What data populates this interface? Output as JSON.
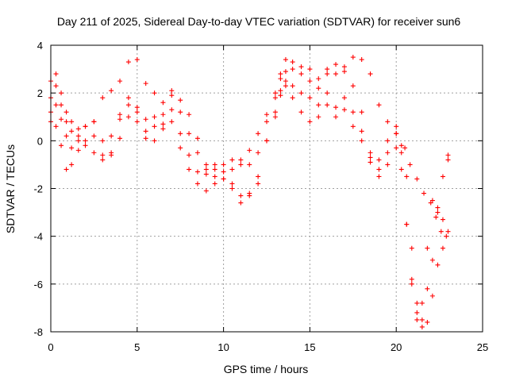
{
  "chart_data": {
    "type": "scatter",
    "title": "Day 211 of 2025, Sidereal Day-to-day VTEC variation (SDTVAR) for receiver sun6",
    "xlabel": "GPS time / hours",
    "ylabel": "SDTVAR / TECUs",
    "xlim": [
      0,
      25
    ],
    "ylim": [
      -8,
      4
    ],
    "xticks": [
      0,
      5,
      10,
      15,
      20,
      25
    ],
    "yticks": [
      -8,
      -6,
      -4,
      -2,
      0,
      2,
      4
    ],
    "xtick_labels": [
      "0",
      "5",
      "10",
      "15",
      "20",
      "25"
    ],
    "ytick_labels": [
      "-8",
      "-6",
      "-4",
      "-2",
      "0",
      "2",
      "4"
    ],
    "grid": true,
    "legend": "none",
    "marker": "plus",
    "color": "#ff0000",
    "series": [
      {
        "x": [
          0.0,
          0.3,
          0.6,
          0.9,
          1.2,
          1.6,
          2.0,
          2.5,
          3.0,
          3.5,
          4.0,
          4.5,
          5.0,
          5.5,
          6.0,
          6.5,
          7.0,
          7.5,
          8.0,
          8.5,
          9.0,
          9.5,
          10.0,
          10.5,
          11.0,
          11.5,
          12.0,
          12.5,
          13.0,
          13.3,
          13.6,
          14.0,
          14.5,
          15.0,
          15.5,
          16.0,
          16.5,
          17.0,
          17.5,
          18.0,
          18.5,
          19.0,
          19.5,
          20.0,
          20.5,
          20.8,
          21.2,
          21.6,
          22.0,
          22.3,
          22.6,
          22.9
        ],
        "y": [
          2.5,
          2.8,
          2.0,
          1.2,
          0.8,
          0.5,
          0.6,
          0.8,
          1.8,
          2.1,
          2.5,
          3.3,
          3.4,
          2.4,
          2.0,
          1.6,
          1.9,
          1.2,
          0.3,
          -0.5,
          -1.0,
          -1.2,
          -1.0,
          -0.8,
          -1.0,
          -0.4,
          0.3,
          1.1,
          2.0,
          2.8,
          3.4,
          3.3,
          3.1,
          3.0,
          2.6,
          2.8,
          3.2,
          3.1,
          3.5,
          3.4,
          2.8,
          1.5,
          0.8,
          0.3,
          -0.3,
          -1.0,
          -1.6,
          -2.2,
          -2.6,
          -3.2,
          -3.8,
          -4.0
        ]
      },
      {
        "x": [
          0.0,
          0.3,
          0.6,
          0.9,
          1.2,
          1.6,
          2.0,
          2.5,
          3.0,
          3.5,
          4.0,
          4.5,
          5.0,
          5.5,
          6.0,
          6.5,
          7.0,
          7.5,
          8.0,
          8.5,
          9.0,
          9.5,
          10.0,
          10.5,
          11.0,
          11.5,
          12.0,
          12.5,
          13.0,
          13.3,
          13.6,
          14.0,
          14.5,
          15.0,
          15.5,
          16.0,
          16.5,
          17.0,
          17.5,
          18.0,
          18.5,
          19.0,
          19.5,
          20.0,
          20.3,
          20.6,
          20.9,
          21.2,
          21.5,
          21.8,
          22.1,
          22.4,
          22.7,
          23.0
        ],
        "y": [
          1.8,
          2.3,
          1.5,
          0.8,
          0.4,
          0.2,
          0.6,
          0.8,
          0.0,
          -0.5,
          0.9,
          1.5,
          1.2,
          0.4,
          1.0,
          1.1,
          2.1,
          1.7,
          1.1,
          0.1,
          -1.2,
          -1.5,
          -1.6,
          -1.2,
          -0.8,
          -1.0,
          -0.5,
          0.8,
          1.8,
          2.6,
          2.9,
          3.0,
          2.8,
          2.5,
          2.2,
          3.0,
          2.8,
          2.9,
          2.3,
          1.2,
          -0.5,
          -0.8,
          0.0,
          0.6,
          -0.5,
          -3.5,
          -6.0,
          -7.5,
          -7.8,
          -7.6,
          -6.5,
          -5.2,
          -4.5,
          -0.6
        ]
      },
      {
        "x": [
          0.0,
          0.3,
          0.6,
          0.9,
          1.2,
          1.6,
          2.0,
          2.5,
          3.0,
          3.5,
          4.0,
          4.5,
          5.0,
          5.5,
          6.0,
          6.5,
          7.0,
          7.5,
          8.0,
          8.5,
          9.0,
          9.5,
          10.0,
          10.5,
          11.0,
          11.5,
          12.0,
          12.5,
          13.0,
          13.3,
          13.6,
          14.0,
          14.5,
          15.0,
          15.5,
          16.0,
          16.5,
          17.0,
          17.5,
          18.0,
          18.5,
          19.0,
          19.5,
          20.0,
          20.3,
          20.6,
          20.9,
          21.2,
          21.5,
          21.8,
          22.1,
          22.4,
          22.7,
          23.0
        ],
        "y": [
          0.8,
          1.5,
          0.9,
          0.2,
          -0.3,
          0.0,
          -0.2,
          -0.5,
          -0.8,
          0.2,
          1.1,
          1.8,
          1.4,
          0.9,
          0.6,
          0.7,
          1.3,
          0.3,
          -0.6,
          -1.3,
          -1.4,
          -1.0,
          -1.3,
          -1.8,
          -2.3,
          -2.2,
          -1.5,
          0.0,
          1.2,
          2.1,
          2.5,
          2.3,
          2.0,
          1.8,
          1.5,
          2.0,
          1.4,
          1.8,
          1.2,
          0.4,
          -0.7,
          -1.2,
          -0.5,
          0.3,
          -0.2,
          -1.5,
          -4.5,
          -6.8,
          -7.5,
          -6.2,
          -5.0,
          -3.0,
          -1.5,
          -0.8
        ]
      },
      {
        "x": [
          0.0,
          0.3,
          0.6,
          0.9,
          1.2,
          1.6,
          2.0,
          2.5,
          3.0,
          3.5,
          4.0,
          4.5,
          5.0,
          5.5,
          6.0,
          6.5,
          7.0,
          7.5,
          8.0,
          8.5,
          9.0,
          9.5,
          10.0,
          10.5,
          11.0,
          11.5,
          12.0,
          12.5,
          13.0,
          13.3,
          13.6,
          14.0,
          14.5,
          15.0,
          15.5,
          16.0,
          16.5,
          17.0,
          17.5,
          18.0,
          18.5,
          19.0,
          19.5,
          20.0,
          20.3,
          20.6,
          20.9,
          21.2,
          21.5,
          21.8,
          22.1,
          22.4,
          22.7,
          23.0
        ],
        "y": [
          1.2,
          0.6,
          -0.2,
          -1.2,
          -1.0,
          -0.4,
          0.0,
          0.2,
          -0.6,
          -0.6,
          0.1,
          1.0,
          0.8,
          0.1,
          0.0,
          0.5,
          0.8,
          -0.3,
          -1.2,
          -1.8,
          -2.1,
          -1.8,
          -1.6,
          -2.0,
          -2.6,
          -2.3,
          -1.8,
          0.0,
          1.0,
          1.9,
          2.3,
          1.8,
          1.2,
          0.8,
          1.0,
          1.5,
          1.0,
          1.3,
          0.6,
          0.0,
          -0.9,
          -1.5,
          -1.0,
          -0.3,
          -1.2,
          -3.5,
          -5.8,
          -7.2,
          -6.8,
          -4.5,
          -2.5,
          -2.8,
          -3.3,
          -3.8
        ]
      }
    ]
  }
}
